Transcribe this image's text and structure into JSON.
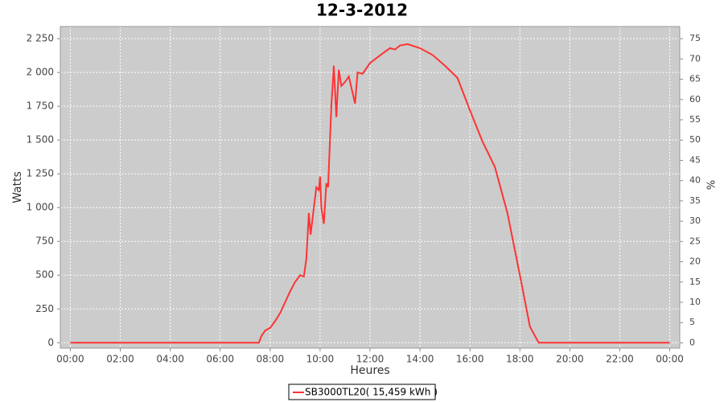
{
  "chart_data": {
    "type": "line",
    "title": "12-3-2012",
    "x_label": "Heures",
    "y_label": "Watts",
    "y2_label": "%",
    "x": [
      0,
      7.55,
      7.65,
      7.8,
      8.0,
      8.2,
      8.4,
      8.6,
      8.8,
      9.0,
      9.2,
      9.35,
      9.45,
      9.55,
      9.62,
      9.75,
      9.85,
      9.95,
      10.0,
      10.05,
      10.15,
      10.25,
      10.32,
      10.45,
      10.55,
      10.65,
      10.75,
      10.85,
      11.0,
      11.15,
      11.3,
      11.4,
      11.5,
      11.7,
      12.0,
      12.5,
      12.8,
      13.0,
      13.2,
      13.5,
      14.0,
      14.5,
      15.0,
      15.5,
      16.0,
      16.5,
      17.0,
      17.5,
      18.0,
      18.4,
      18.75,
      24.0
    ],
    "series": [
      {
        "name": "SB3000TL20( 15,459 kWh )",
        "color": "#ff3333",
        "values": [
          0,
          0,
          50,
          90,
          110,
          160,
          220,
          300,
          380,
          450,
          500,
          490,
          620,
          960,
          800,
          1000,
          1150,
          1130,
          1230,
          1000,
          880,
          1180,
          1150,
          1750,
          2050,
          1670,
          2020,
          1900,
          1930,
          1970,
          1850,
          1770,
          2000,
          1990,
          2070,
          2140,
          2180,
          2170,
          2200,
          2210,
          2180,
          2130,
          2050,
          1960,
          1720,
          1490,
          1300,
          960,
          500,
          120,
          0,
          0
        ]
      }
    ],
    "xlim": [
      -0.4,
      24.4
    ],
    "xticks": [
      {
        "value": 0,
        "label": "00:00"
      },
      {
        "value": 2,
        "label": "02:00"
      },
      {
        "value": 4,
        "label": "04:00"
      },
      {
        "value": 6,
        "label": "06:00"
      },
      {
        "value": 8,
        "label": "08:00"
      },
      {
        "value": 10,
        "label": "10:00"
      },
      {
        "value": 12,
        "label": "12:00"
      },
      {
        "value": 14,
        "label": "14:00"
      },
      {
        "value": 16,
        "label": "16:00"
      },
      {
        "value": 18,
        "label": "18:00"
      },
      {
        "value": 20,
        "label": "20:00"
      },
      {
        "value": 22,
        "label": "22:00"
      },
      {
        "value": 24,
        "label": "00:00"
      }
    ],
    "ylim": [
      -40,
      2340
    ],
    "yticks": [
      0,
      250,
      500,
      750,
      {
        "value": 1000,
        "label": "1 000"
      },
      {
        "value": 1250,
        "label": "1 250"
      },
      {
        "value": 1500,
        "label": "1 500"
      },
      {
        "value": 1750,
        "label": "1 750"
      },
      {
        "value": 2000,
        "label": "2 000"
      },
      {
        "value": 2250,
        "label": "2 250"
      }
    ],
    "y2lim": [
      -1.3,
      78
    ],
    "y2ticks": [
      0,
      5,
      10,
      15,
      20,
      25,
      30,
      35,
      40,
      45,
      50,
      55,
      60,
      65,
      70,
      75
    ],
    "grid": true
  }
}
